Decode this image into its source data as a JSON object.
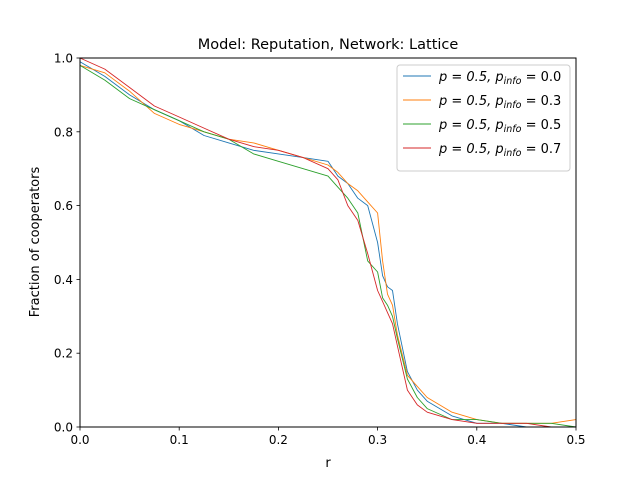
{
  "chart_data": {
    "type": "line",
    "title": "Model: Reputation, Network: Lattice",
    "xlabel": "r",
    "ylabel": "Fraction of cooperators",
    "xlim": [
      0.0,
      0.5
    ],
    "ylim": [
      0.0,
      1.0
    ],
    "xticks": [
      "0.0",
      "0.1",
      "0.2",
      "0.3",
      "0.4",
      "0.5"
    ],
    "yticks": [
      "0.0",
      "0.2",
      "0.4",
      "0.6",
      "0.8",
      "1.0"
    ],
    "grid": false,
    "legend_position": "top-right",
    "x": [
      0.0,
      0.025,
      0.05,
      0.075,
      0.1,
      0.125,
      0.15,
      0.175,
      0.2,
      0.225,
      0.25,
      0.26,
      0.27,
      0.28,
      0.29,
      0.3,
      0.305,
      0.31,
      0.315,
      0.32,
      0.33,
      0.34,
      0.35,
      0.375,
      0.4,
      0.425,
      0.45,
      0.475,
      0.5
    ],
    "series": [
      {
        "name": "p = 0.5, p_info = 0.0",
        "legend_main": "p = 0.5, p",
        "legend_sub": "info",
        "legend_tail": " = 0.0",
        "color": "#1f77b4",
        "values": [
          0.99,
          0.95,
          0.9,
          0.86,
          0.83,
          0.79,
          0.77,
          0.75,
          0.74,
          0.73,
          0.72,
          0.68,
          0.66,
          0.62,
          0.6,
          0.5,
          0.41,
          0.38,
          0.37,
          0.28,
          0.15,
          0.1,
          0.07,
          0.03,
          0.01,
          0.01,
          0.0,
          0.0,
          0.0
        ]
      },
      {
        "name": "p = 0.5, p_info = 0.3",
        "legend_main": "p = 0.5, p",
        "legend_sub": "info",
        "legend_tail": " = 0.3",
        "color": "#ff7f0e",
        "values": [
          0.98,
          0.96,
          0.91,
          0.85,
          0.82,
          0.8,
          0.78,
          0.77,
          0.75,
          0.73,
          0.71,
          0.69,
          0.66,
          0.64,
          0.61,
          0.58,
          0.45,
          0.36,
          0.33,
          0.25,
          0.14,
          0.11,
          0.08,
          0.04,
          0.02,
          0.01,
          0.01,
          0.01,
          0.02
        ]
      },
      {
        "name": "p = 0.5, p_info = 0.5",
        "legend_main": "p = 0.5, p",
        "legend_sub": "info",
        "legend_tail": " = 0.5",
        "color": "#2ca02c",
        "values": [
          0.98,
          0.94,
          0.89,
          0.86,
          0.83,
          0.8,
          0.78,
          0.74,
          0.72,
          0.7,
          0.68,
          0.65,
          0.62,
          0.58,
          0.45,
          0.42,
          0.35,
          0.33,
          0.3,
          0.24,
          0.13,
          0.08,
          0.05,
          0.02,
          0.02,
          0.01,
          0.01,
          0.01,
          0.0
        ]
      },
      {
        "name": "p = 0.5, p_info = 0.7",
        "legend_main": "p = 0.5, p",
        "legend_sub": "info",
        "legend_tail": " = 0.7",
        "color": "#d62728",
        "values": [
          1.0,
          0.97,
          0.92,
          0.87,
          0.84,
          0.81,
          0.78,
          0.76,
          0.75,
          0.73,
          0.7,
          0.67,
          0.6,
          0.56,
          0.47,
          0.37,
          0.34,
          0.31,
          0.28,
          0.22,
          0.1,
          0.06,
          0.04,
          0.02,
          0.01,
          0.01,
          0.01,
          0.0,
          0.0
        ]
      }
    ]
  }
}
